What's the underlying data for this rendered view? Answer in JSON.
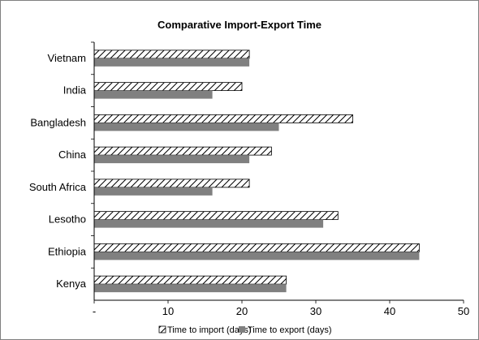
{
  "chart_data": {
    "type": "bar",
    "orientation": "horizontal",
    "title": "Comparative Import-Export Time",
    "categories": [
      "Vietnam",
      "India",
      "Bangladesh",
      "China",
      "South Africa",
      "Lesotho",
      "Ethiopia",
      "Kenya"
    ],
    "series": [
      {
        "name": "Time to import (days)",
        "values": [
          21,
          20,
          35,
          24,
          21,
          33,
          44,
          26
        ],
        "color": "#ffffff",
        "pattern": "diagonal-hatch"
      },
      {
        "name": "Time to export (days)",
        "values": [
          21,
          16,
          25,
          21,
          16,
          31,
          44,
          26
        ],
        "color": "#808080",
        "pattern": "solid"
      }
    ],
    "xlim": [
      0,
      50
    ],
    "x_ticks": [
      "-",
      "10",
      "20",
      "30",
      "40",
      "50"
    ],
    "xlabel": "",
    "ylabel": "",
    "grid": false,
    "legend_position": "bottom"
  }
}
